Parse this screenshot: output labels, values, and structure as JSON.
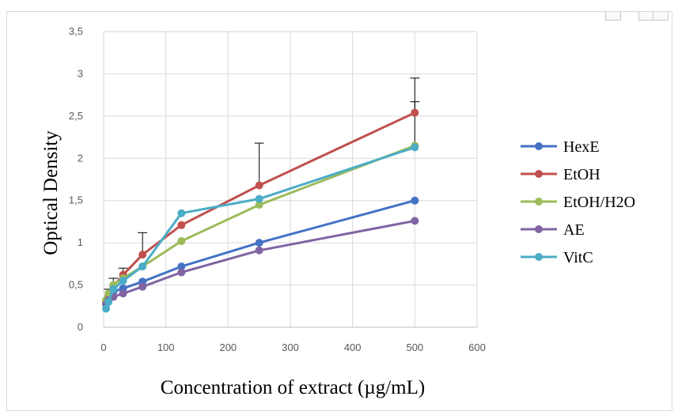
{
  "chart_data": {
    "type": "line",
    "title": "",
    "xlabel": "Concentration of extract (µg/mL)",
    "ylabel": "Optical Density",
    "x_ticks": [
      "0",
      "100",
      "200",
      "300",
      "400",
      "500",
      "600"
    ],
    "y_ticks": [
      "0",
      "0,5",
      "1",
      "1,5",
      "2",
      "2,5",
      "3",
      "3,5"
    ],
    "xlim": [
      0,
      600
    ],
    "ylim": [
      0,
      3.5
    ],
    "grid": true,
    "legend_position": "right",
    "x": [
      3.9,
      7.8,
      15.6,
      31.25,
      62.5,
      125,
      250,
      500
    ],
    "series": [
      {
        "name": "HexE",
        "color": "#4472C4",
        "values": [
          0.3,
          0.36,
          0.42,
          0.46,
          0.54,
          0.72,
          1.0,
          1.5
        ],
        "error": [
          0,
          0,
          0,
          0,
          0,
          0,
          0,
          0
        ]
      },
      {
        "name": "EtOH",
        "color": "#C0504D",
        "values": [
          0.3,
          0.37,
          0.48,
          0.62,
          0.86,
          1.21,
          1.68,
          2.54
        ],
        "error": [
          0,
          0.08,
          0.1,
          0.08,
          0.26,
          0,
          0.5,
          0.41
        ]
      },
      {
        "name": "EtOH/H2O",
        "color": "#9BBB59",
        "values": [
          0.32,
          0.4,
          0.5,
          0.58,
          0.72,
          1.02,
          1.45,
          2.15
        ],
        "error": [
          0,
          0,
          0,
          0,
          0,
          0,
          0,
          0
        ]
      },
      {
        "name": "AE",
        "color": "#8064A2",
        "values": [
          0.27,
          0.32,
          0.36,
          0.4,
          0.48,
          0.65,
          0.91,
          1.26
        ],
        "error": [
          0,
          0,
          0,
          0,
          0,
          0,
          0,
          0
        ]
      },
      {
        "name": "VitC",
        "color": "#4BACC6",
        "values": [
          0.22,
          0.3,
          0.45,
          0.55,
          0.72,
          1.35,
          1.52,
          2.13
        ],
        "error": [
          0,
          0,
          0,
          0,
          0,
          0,
          0,
          0.54
        ]
      }
    ]
  }
}
